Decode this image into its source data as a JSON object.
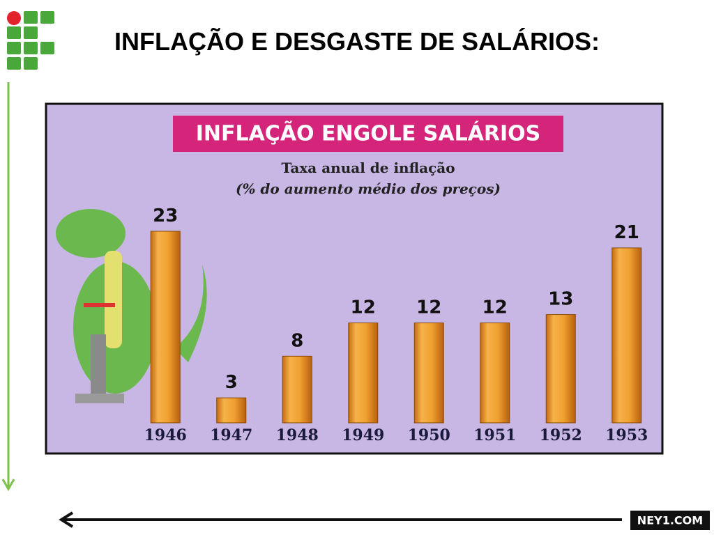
{
  "slide": {
    "title": "INFLAÇÃO E DESGASTE DE SALÁRIOS:",
    "watermark": "NEY1.COM"
  },
  "chart_data": {
    "type": "bar",
    "title": "INFLAÇÃO ENGOLE SALÁRIOS",
    "subtitle": [
      "Taxa anual de inflação",
      "(% do aumento médio dos preços)"
    ],
    "categories": [
      "1946",
      "1947",
      "1948",
      "1949",
      "1950",
      "1951",
      "1952",
      "1953"
    ],
    "values": [
      23,
      3,
      8,
      12,
      12,
      12,
      13,
      21
    ],
    "color": "#f0a030"
  }
}
